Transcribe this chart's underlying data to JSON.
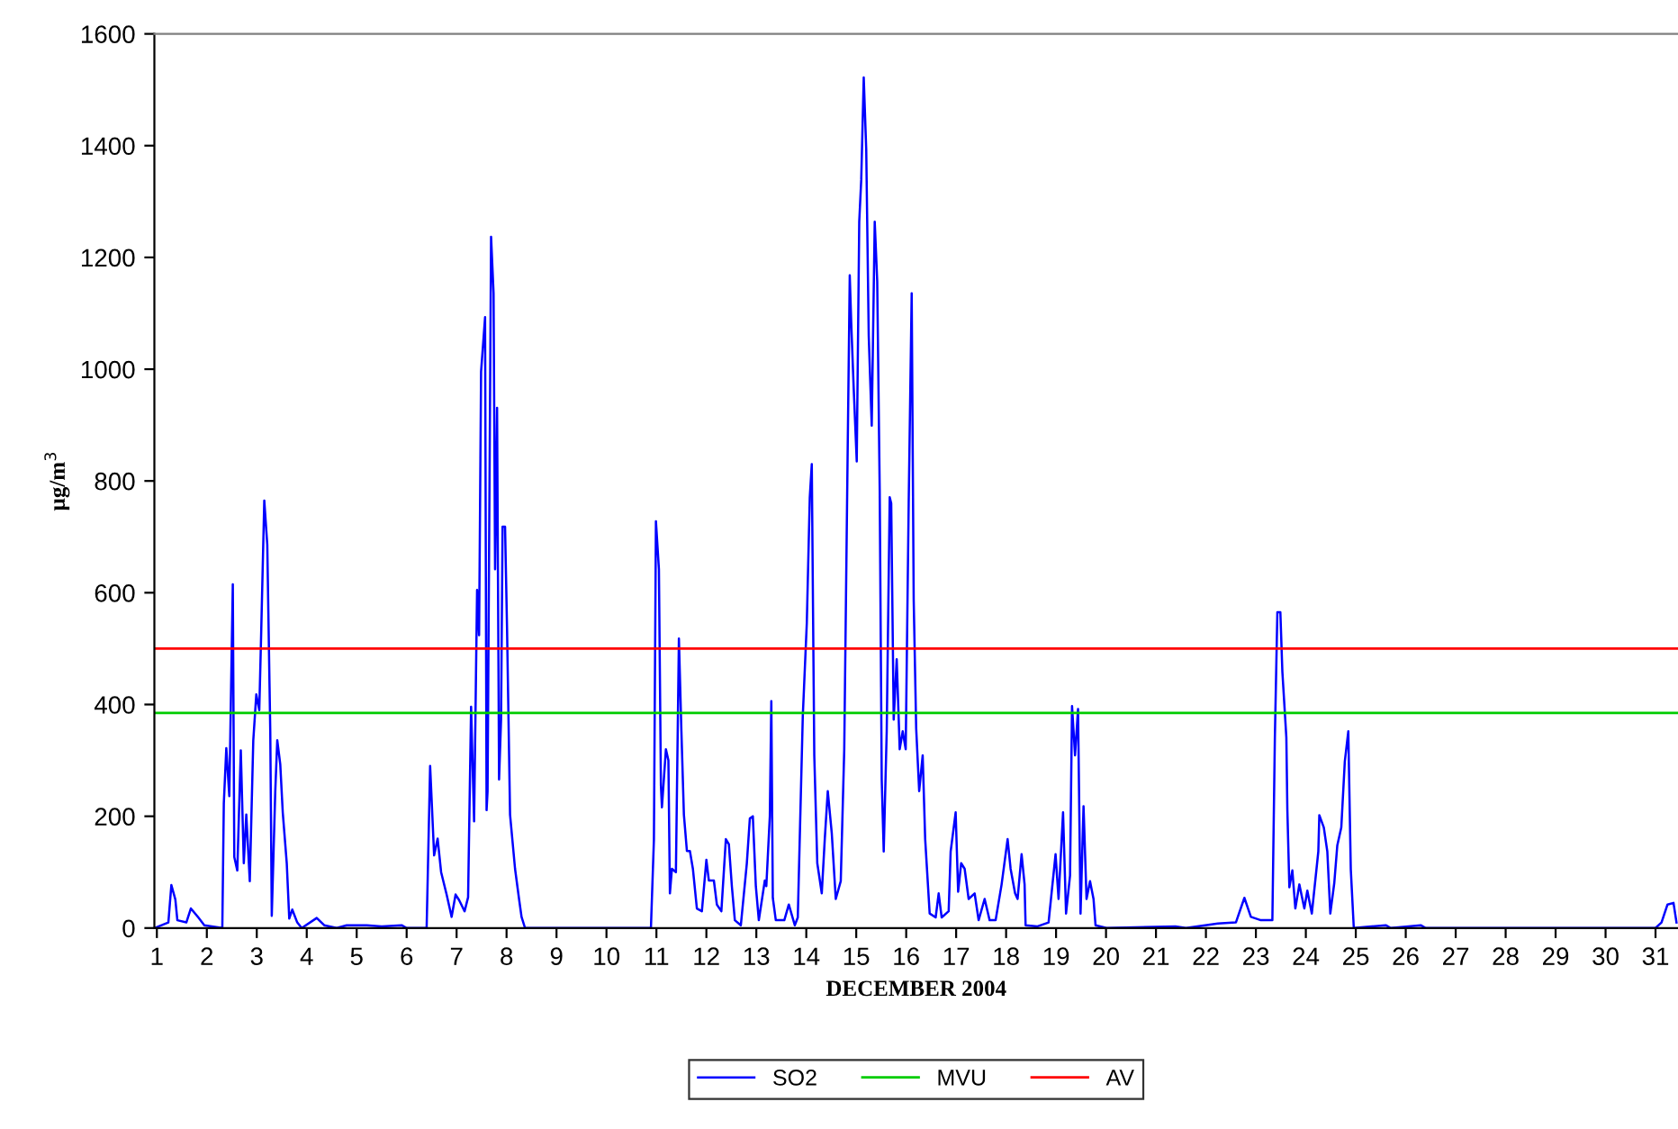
{
  "chart_data": {
    "type": "line",
    "xlabel": "DECEMBER 2004",
    "ylabel": "µg/m$^{3}$",
    "xlim": [
      0.95,
      31.45
    ],
    "xticks": [
      1,
      2,
      3,
      4,
      5,
      6,
      7,
      8,
      9,
      10,
      11,
      12,
      13,
      14,
      15,
      16,
      17,
      18,
      19,
      20,
      21,
      22,
      23,
      24,
      25,
      26,
      27,
      28,
      29,
      30,
      31
    ],
    "ylim": [
      0,
      1600
    ],
    "yticks": [
      0,
      200,
      400,
      600,
      800,
      1000,
      1200,
      1400,
      1600
    ],
    "grid": false,
    "legend": "bottom",
    "marker": "none",
    "line_style": "solid",
    "series": [
      {
        "name": "SO2",
        "color": "#0000ff",
        "x": [
          0.95,
          1.23,
          1.29,
          1.37,
          1.41,
          1.59,
          1.68,
          1.83,
          1.95,
          2.31,
          2.34,
          2.39,
          2.45,
          2.52,
          2.55,
          2.61,
          2.68,
          2.74,
          2.79,
          2.86,
          2.93,
          2.99,
          3.05,
          3.09,
          3.15,
          3.21,
          3.27,
          3.3,
          3.37,
          3.41,
          3.47,
          3.52,
          3.6,
          3.65,
          3.71,
          3.81,
          3.9,
          4.2,
          4.35,
          4.6,
          4.8,
          5.2,
          5.5,
          5.9,
          6.0,
          6.4,
          6.47,
          6.55,
          6.62,
          6.69,
          6.8,
          6.9,
          6.98,
          7.05,
          7.16,
          7.23,
          7.29,
          7.35,
          7.41,
          7.45,
          7.49,
          7.57,
          7.6,
          7.62,
          7.69,
          7.74,
          7.77,
          7.81,
          7.85,
          7.89,
          7.92,
          7.97,
          8.01,
          8.07,
          8.17,
          8.25,
          8.3,
          8.37,
          10.89,
          10.95,
          10.99,
          11.05,
          11.09,
          11.11,
          11.19,
          11.24,
          11.27,
          11.31,
          11.39,
          11.45,
          11.5,
          11.55,
          11.61,
          11.67,
          11.73,
          11.81,
          11.91,
          12.0,
          12.05,
          12.15,
          12.21,
          12.3,
          12.39,
          12.45,
          12.51,
          12.57,
          12.69,
          12.81,
          12.87,
          12.93,
          12.99,
          13.05,
          13.17,
          13.2,
          13.27,
          13.3,
          13.33,
          13.39,
          13.56,
          13.65,
          13.77,
          13.83,
          13.93,
          14.01,
          14.07,
          14.11,
          14.16,
          14.22,
          14.31,
          14.37,
          14.43,
          14.51,
          14.59,
          14.69,
          14.76,
          14.83,
          14.87,
          14.9,
          14.95,
          15.01,
          15.06,
          15.1,
          15.15,
          15.2,
          15.25,
          15.31,
          15.37,
          15.42,
          15.47,
          15.51,
          15.55,
          15.61,
          15.67,
          15.7,
          15.75,
          15.81,
          15.87,
          15.93,
          15.99,
          16.05,
          16.11,
          16.15,
          16.2,
          16.26,
          16.33,
          16.38,
          16.47,
          16.59,
          16.65,
          16.71,
          16.85,
          16.89,
          16.99,
          17.04,
          17.1,
          17.17,
          17.25,
          17.37,
          17.45,
          17.57,
          17.67,
          17.79,
          17.91,
          18.03,
          18.09,
          18.18,
          18.23,
          18.31,
          18.37,
          18.39,
          18.63,
          18.85,
          18.99,
          19.05,
          19.14,
          19.2,
          19.28,
          19.32,
          19.38,
          19.44,
          19.49,
          19.55,
          19.61,
          19.68,
          19.75,
          19.79,
          20.01,
          21.39,
          21.6,
          22.24,
          22.6,
          22.77,
          22.9,
          23.1,
          23.33,
          23.38,
          23.43,
          23.49,
          23.53,
          23.61,
          23.63,
          23.67,
          23.73,
          23.79,
          23.87,
          23.97,
          24.03,
          24.12,
          24.25,
          24.27,
          24.36,
          24.43,
          24.49,
          24.57,
          24.63,
          24.71,
          24.78,
          24.85,
          24.9,
          24.96,
          25.6,
          25.7,
          26.3,
          26.4,
          31.0,
          31.12,
          31.24,
          31.36,
          31.42
        ],
        "values": [
          0,
          10,
          77,
          51,
          14,
          10,
          35,
          19,
          5,
          0,
          223,
          322,
          236,
          615,
          127,
          103,
          318,
          116,
          203,
          84,
          336,
          418,
          390,
          535,
          765,
          686,
          352,
          22,
          245,
          336,
          293,
          207,
          116,
          17,
          33,
          10,
          0,
          18,
          5,
          0,
          5,
          5,
          3,
          5,
          0,
          0,
          290,
          130,
          160,
          100,
          60,
          20,
          60,
          50,
          30,
          55,
          396,
          191,
          605,
          524,
          996,
          1093,
          211,
          245,
          1237,
          1136,
          642,
          931,
          266,
          373,
          718,
          718,
          534,
          203,
          106,
          52,
          20,
          0,
          0,
          159,
          728,
          642,
          255,
          216,
          320,
          300,
          62,
          106,
          100,
          518,
          352,
          203,
          138,
          138,
          106,
          35,
          30,
          122,
          85,
          85,
          42,
          30,
          159,
          150,
          75,
          14,
          5,
          116,
          196,
          200,
          75,
          14,
          85,
          75,
          200,
          406,
          54,
          14,
          14,
          42,
          5,
          19,
          379,
          545,
          771,
          830,
          309,
          116,
          62,
          159,
          245,
          170,
          52,
          84,
          320,
          867,
          1168,
          1082,
          964,
          835,
          1264,
          1339,
          1522,
          1393,
          1060,
          899,
          1264,
          1157,
          781,
          266,
          137,
          352,
          771,
          760,
          373,
          481,
          320,
          352,
          320,
          760,
          1136,
          588,
          357,
          245,
          309,
          159,
          26,
          19,
          62,
          19,
          30,
          137,
          207,
          65,
          116,
          106,
          52,
          62,
          14,
          52,
          14,
          14,
          78,
          159,
          106,
          62,
          52,
          132,
          78,
          5,
          3,
          10,
          132,
          52,
          207,
          26,
          94,
          397,
          309,
          392,
          26,
          218,
          52,
          84,
          52,
          5,
          0,
          3,
          0,
          8,
          10,
          54,
          20,
          14,
          14,
          341,
          565,
          565,
          459,
          341,
          212,
          73,
          103,
          35,
          78,
          35,
          67,
          26,
          137,
          202,
          180,
          137,
          26,
          81,
          148,
          180,
          298,
          352,
          105,
          0,
          5,
          0,
          5,
          0,
          0,
          10,
          42,
          45,
          10
        ]
      }
    ],
    "ref_lines": [
      {
        "axis": "y",
        "value": 385,
        "label": "MVU",
        "color": "#00cc00",
        "line_style": "solid"
      },
      {
        "axis": "y",
        "value": 500,
        "label": "AV",
        "color": "#ff0000",
        "line_style": "solid"
      }
    ]
  }
}
